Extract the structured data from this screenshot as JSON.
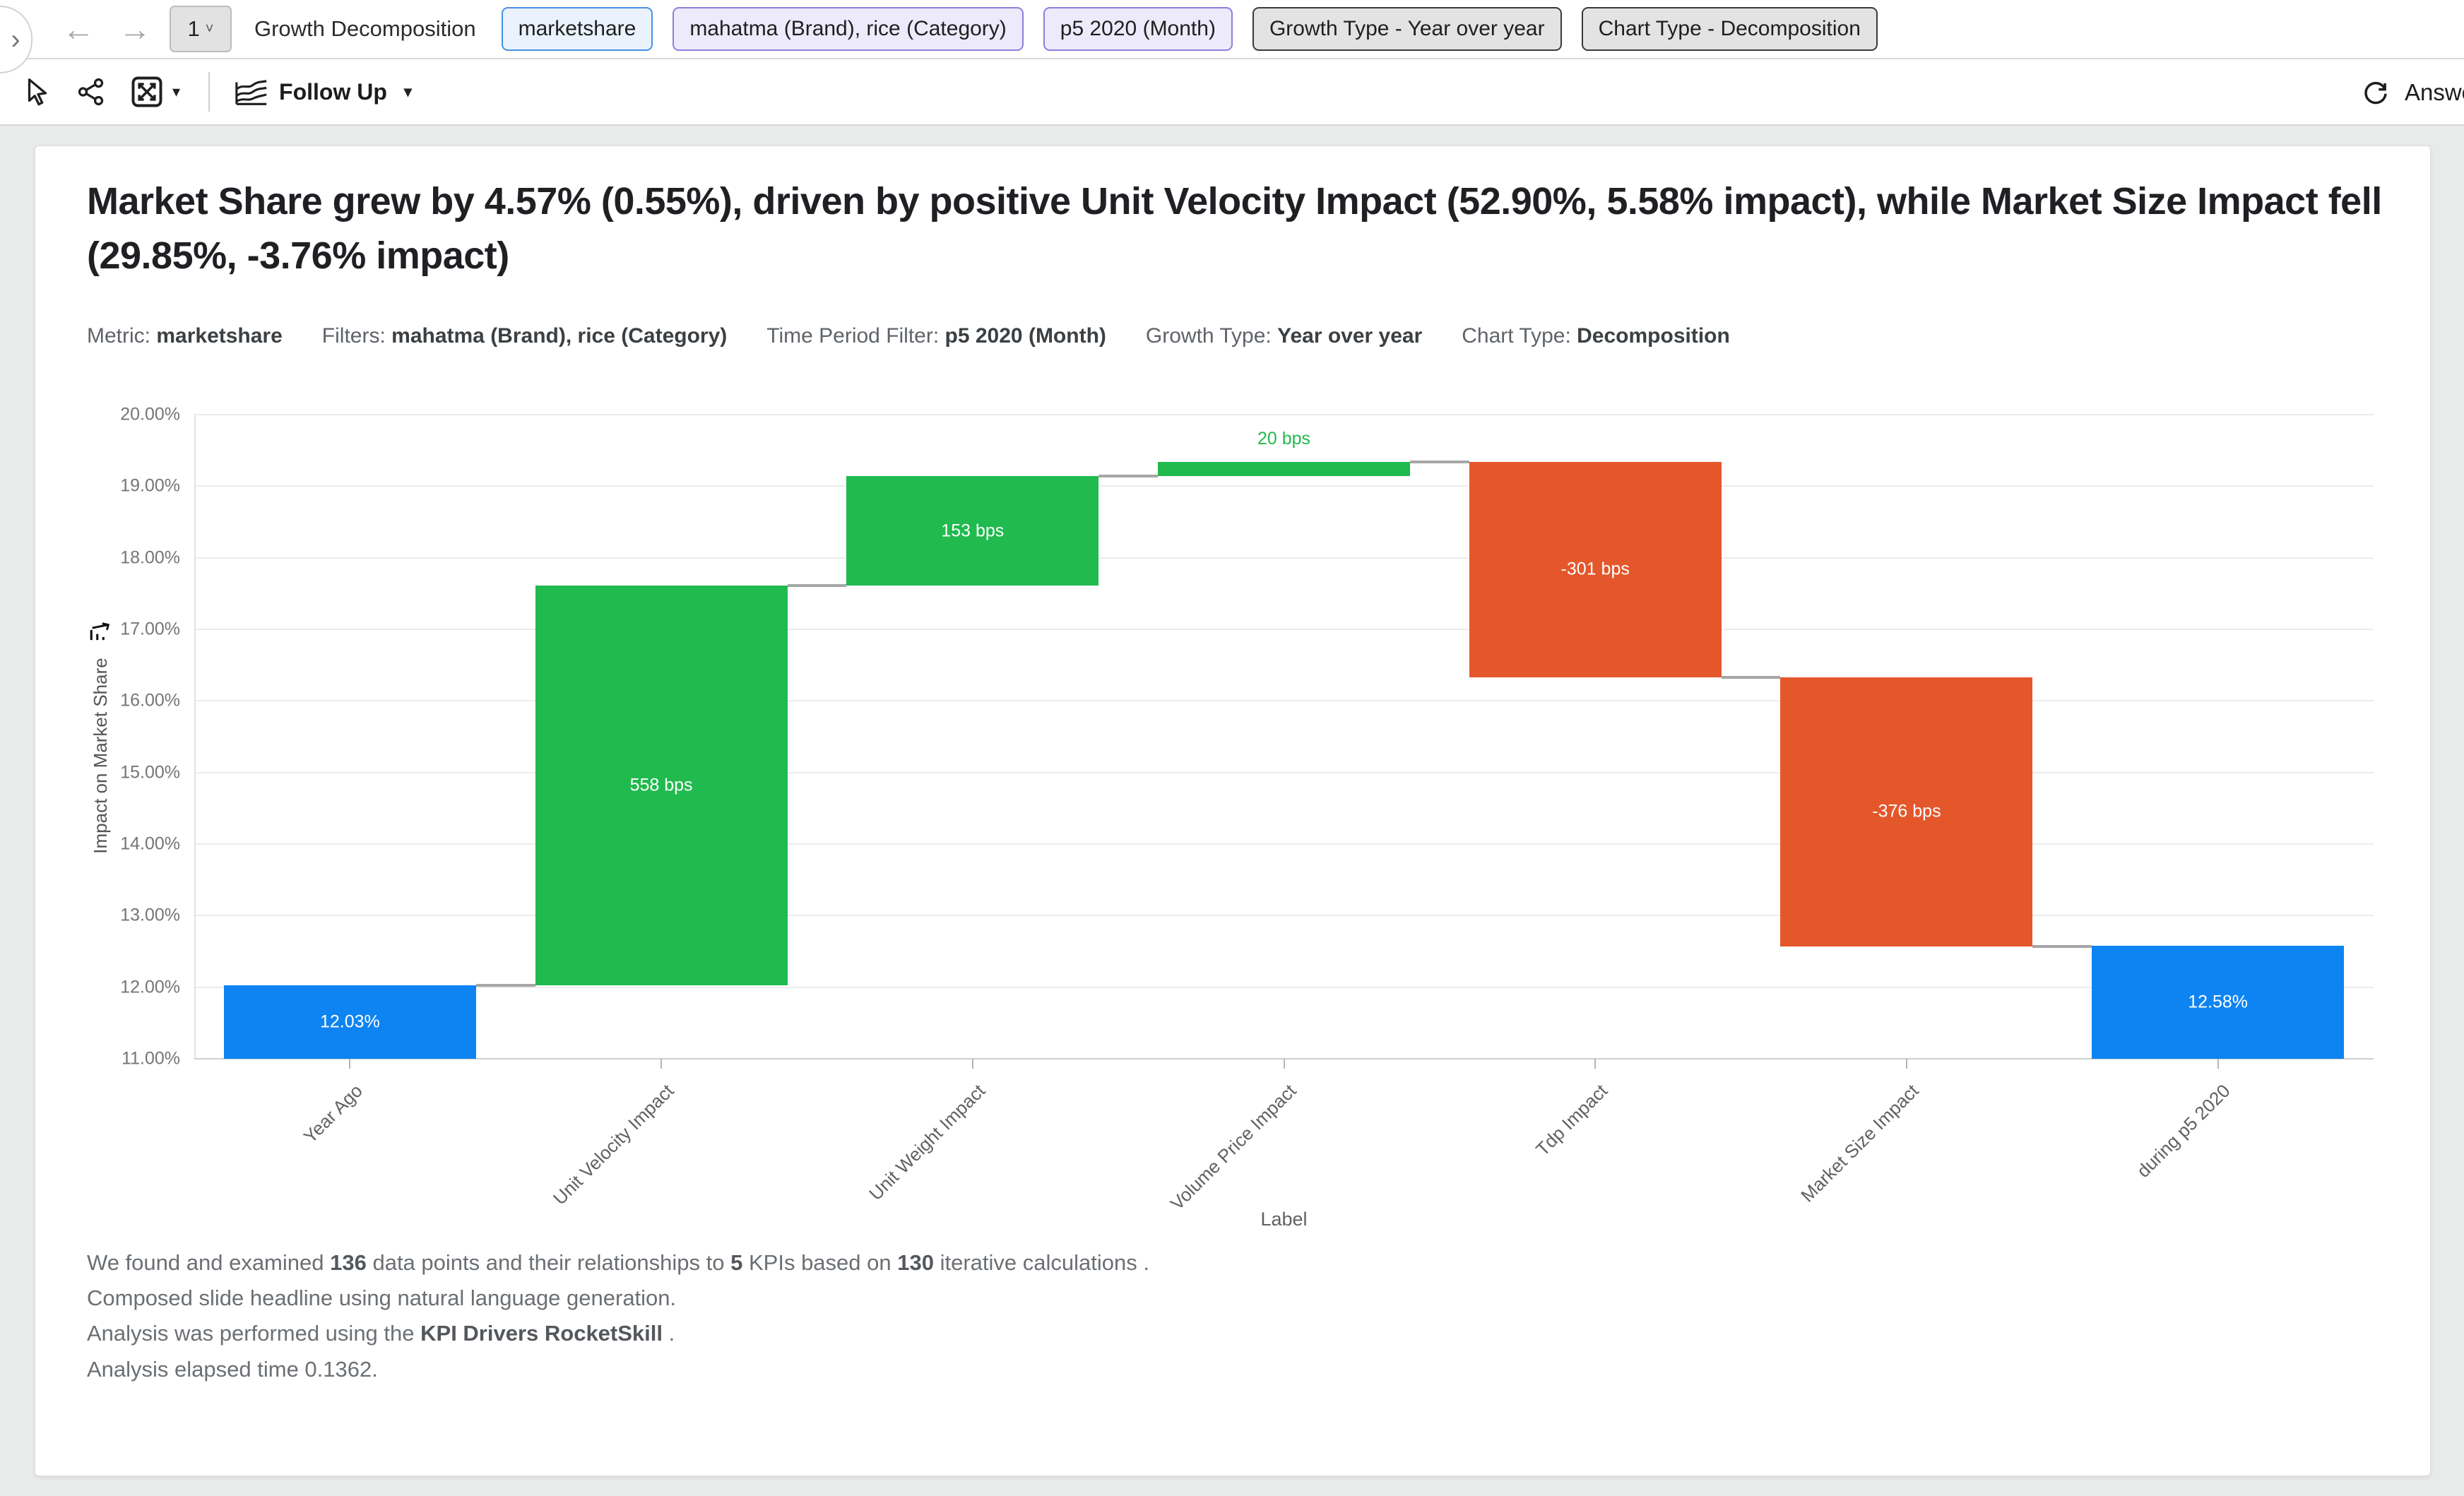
{
  "toolbar": {
    "drawer_toggle_glyph": "›",
    "back_glyph": "←",
    "forward_glyph": "→",
    "page_number": "1",
    "title": "Growth Decomposition",
    "chips": [
      {
        "label": "marketshare",
        "style": "blue"
      },
      {
        "label": "mahatma (Brand), rice (Category)",
        "style": "purple"
      },
      {
        "label": "p5 2020 (Month)",
        "style": "purple"
      },
      {
        "label": "Growth Type - Year over year",
        "style": "gray"
      },
      {
        "label": "Chart Type - Decomposition",
        "style": "gray"
      }
    ],
    "icons": [
      "pointer-icon",
      "share-icon",
      "expand-icon",
      "area-chart-icon",
      "refresh-icon"
    ],
    "follow_up_label": "Follow Up",
    "answer_label": "Answer"
  },
  "headline": "Market Share grew by 4.57% (0.55%), driven by positive Unit Velocity Impact (52.90%, 5.58% impact), while Market Size Impact fell (29.85%, -3.76% impact)",
  "meta": [
    {
      "label": "Metric:",
      "value": "marketshare"
    },
    {
      "label": "Filters:",
      "value": "mahatma (Brand), rice (Category)"
    },
    {
      "label": "Time Period Filter:",
      "value": "p5 2020 (Month)"
    },
    {
      "label": "Growth Type:",
      "value": "Year over year"
    },
    {
      "label": "Chart Type:",
      "value": "Decomposition"
    }
  ],
  "chart_data": {
    "type": "bar",
    "subtype": "waterfall",
    "xlabel": "Label",
    "ylabel": "Impact on Market Share",
    "ylim": [
      11,
      20
    ],
    "ytick_step": 1,
    "ytick_suffix": "%",
    "grid": true,
    "legend": false,
    "categories": [
      "Year Ago",
      "Unit Velocity Impact",
      "Unit Weight Impact",
      "Volume Price Impact",
      "Tdp Impact",
      "Market Size Impact",
      "during p5 2020"
    ],
    "bars": [
      {
        "category": "Year Ago",
        "start": 11.0,
        "end": 12.03,
        "color": "blue",
        "label": "12.03%",
        "label_pos": "inside"
      },
      {
        "category": "Unit Velocity Impact",
        "start": 12.03,
        "end": 17.61,
        "color": "green",
        "label": "558 bps",
        "label_pos": "inside"
      },
      {
        "category": "Unit Weight Impact",
        "start": 17.61,
        "end": 19.14,
        "color": "green",
        "label": "153 bps",
        "label_pos": "inside"
      },
      {
        "category": "Volume Price Impact",
        "start": 19.14,
        "end": 19.34,
        "color": "green",
        "label": "20 bps",
        "label_pos": "above"
      },
      {
        "category": "Tdp Impact",
        "start": 19.34,
        "end": 16.33,
        "color": "orange",
        "label": "-301 bps",
        "label_pos": "inside"
      },
      {
        "category": "Market Size Impact",
        "start": 16.33,
        "end": 12.57,
        "color": "orange",
        "label": "-376 bps",
        "label_pos": "inside"
      },
      {
        "category": "during p5 2020",
        "start": 11.0,
        "end": 12.58,
        "color": "blue",
        "label": "12.58%",
        "label_pos": "inside"
      }
    ],
    "colors": {
      "blue": "#0d84f2",
      "green": "#20ba4e",
      "orange": "#e4572b"
    }
  },
  "footnotes": {
    "lines": [
      [
        {
          "t": "We found and examined "
        },
        {
          "t": "136",
          "b": true
        },
        {
          "t": " data points and their relationships to "
        },
        {
          "t": "5",
          "b": true
        },
        {
          "t": " KPIs based on "
        },
        {
          "t": "130",
          "b": true
        },
        {
          "t": " iterative calculations ."
        }
      ],
      [
        {
          "t": "Composed slide headline using natural language generation."
        }
      ],
      [
        {
          "t": "Analysis was performed using the "
        },
        {
          "t": "KPI Drivers RocketSkill",
          "b": true
        },
        {
          "t": " ."
        }
      ],
      [
        {
          "t": "Analysis elapsed time 0.1362."
        }
      ]
    ]
  }
}
